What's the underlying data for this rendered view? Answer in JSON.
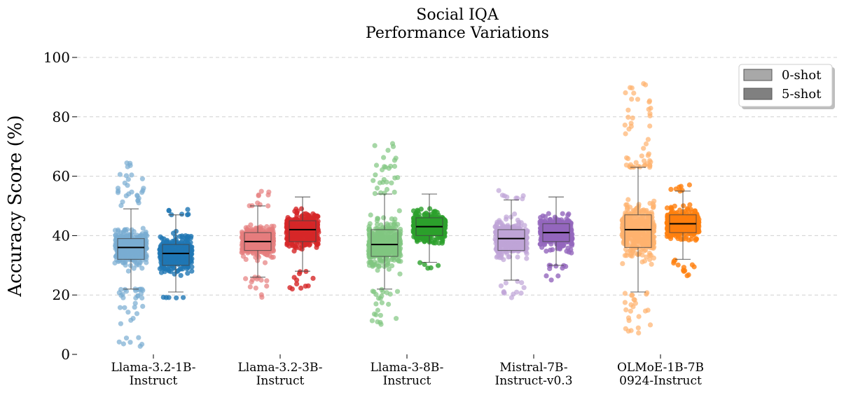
{
  "chart_data": {
    "type": "box",
    "title": "Social IQA\nPerformance Variations",
    "ylabel": "Accuracy Score (%)",
    "xlabel": "",
    "ylim": [
      0,
      100
    ],
    "yticks": [
      0,
      20,
      40,
      60,
      80,
      100
    ],
    "grid": "horizontal-dashed",
    "legend": {
      "position": "top-right",
      "entries": [
        "0-shot",
        "5-shot"
      ]
    },
    "legend_colors": [
      "#a8a8a8",
      "#808080"
    ],
    "categories": [
      "Llama-3.2-1B-\nInstruct",
      "Llama-3.2-3B-\nInstruct",
      "Llama-3-8B-\nInstruct",
      "Mistral-7B-\nInstruct-v0.3",
      "OLMoE-1B-7B\n0924-Instruct"
    ],
    "colors": [
      "#1f77b4",
      "#d62728",
      "#2ca02c",
      "#9467bd",
      "#ff7f0e"
    ],
    "series": [
      {
        "name": "0-shot",
        "boxes": [
          {
            "whisker_low": 22,
            "q1": 32,
            "median": 36,
            "q3": 39,
            "whisker_high": 49,
            "min": 1,
            "max": 65
          },
          {
            "whisker_low": 26,
            "q1": 35,
            "median": 38,
            "q3": 41,
            "whisker_high": 50,
            "min": 19,
            "max": 55
          },
          {
            "whisker_low": 22,
            "q1": 33,
            "median": 37,
            "q3": 42,
            "whisker_high": 54,
            "min": 9,
            "max": 71
          },
          {
            "whisker_low": 25,
            "q1": 35,
            "median": 39,
            "q3": 42,
            "whisker_high": 52,
            "min": 19,
            "max": 56
          },
          {
            "whisker_low": 21,
            "q1": 36,
            "median": 42,
            "q3": 47,
            "whisker_high": 63,
            "min": 7,
            "max": 93
          }
        ]
      },
      {
        "name": "5-shot",
        "boxes": [
          {
            "whisker_low": 21,
            "q1": 30,
            "median": 34,
            "q3": 37,
            "whisker_high": 47,
            "min": 19,
            "max": 50
          },
          {
            "whisker_low": 28,
            "q1": 38,
            "median": 42,
            "q3": 45,
            "whisker_high": 53,
            "min": 22,
            "max": 53
          },
          {
            "whisker_low": 31,
            "q1": 40,
            "median": 43,
            "q3": 46,
            "whisker_high": 54,
            "min": 29,
            "max": 54
          },
          {
            "whisker_low": 30,
            "q1": 38,
            "median": 41,
            "q3": 44,
            "whisker_high": 53,
            "min": 25,
            "max": 53
          },
          {
            "whisker_low": 32,
            "q1": 41,
            "median": 44,
            "q3": 47,
            "whisker_high": 55,
            "min": 26,
            "max": 58
          }
        ]
      }
    ]
  }
}
